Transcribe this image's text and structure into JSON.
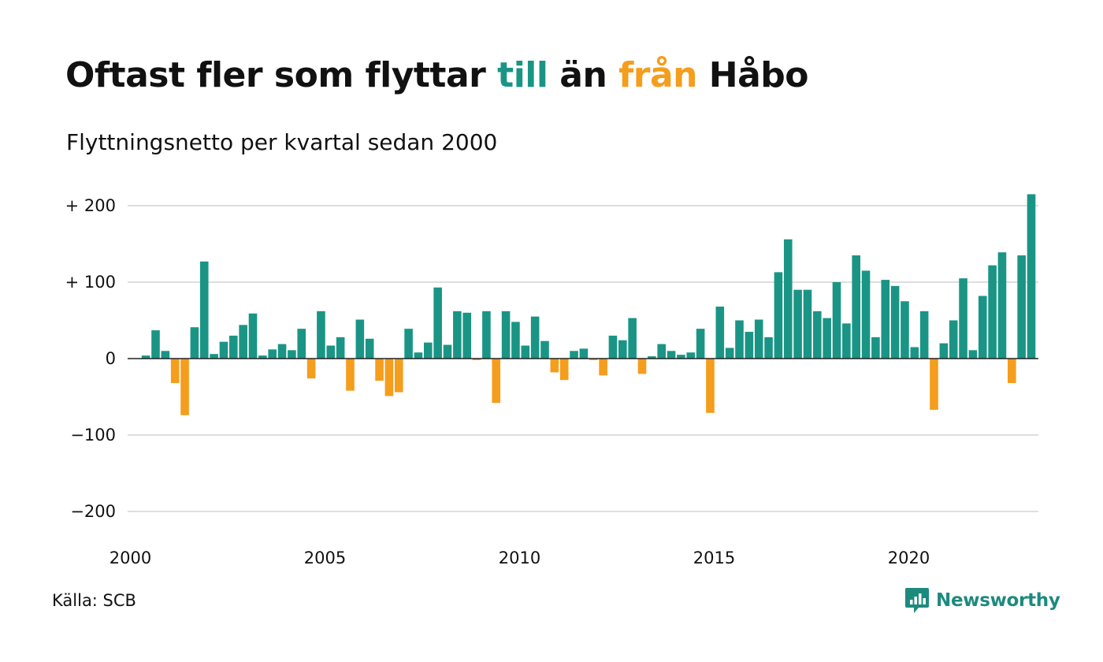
{
  "title": {
    "part1": "Oftast fler som flyttar ",
    "till": "till",
    "part2": " än ",
    "fran": "från",
    "part3": " Håbo"
  },
  "subtitle": "Flyttningsnetto per kvartal sedan 2000",
  "source": "Källa: SCB",
  "brand": "Newsworthy",
  "colors": {
    "positive": "#1a9585",
    "negative": "#f59d1c",
    "grid": "#dedede",
    "brand": "#1d8a7e"
  },
  "chart_data": {
    "type": "bar",
    "title": "Oftast fler som flyttar till än från Håbo",
    "subtitle": "Flyttningsnetto per kvartal sedan 2000",
    "x_start": 2000,
    "ylim": [
      -220,
      220
    ],
    "yticks": [
      200,
      100,
      0,
      -100,
      -200
    ],
    "ytick_labels": [
      "+ 200",
      "+ 100",
      "0",
      "−100",
      "−200"
    ],
    "xticks": [
      2000,
      2005,
      2010,
      2015,
      2020
    ],
    "grid": true,
    "values": [
      0,
      4,
      37,
      10,
      -32,
      -74,
      41,
      127,
      6,
      22,
      30,
      44,
      59,
      4,
      12,
      19,
      11,
      39,
      -26,
      62,
      17,
      28,
      -42,
      51,
      26,
      -29,
      -49,
      -44,
      39,
      8,
      21,
      93,
      18,
      62,
      60,
      -2,
      62,
      -58,
      62,
      48,
      17,
      55,
      23,
      -18,
      -28,
      10,
      13,
      -2,
      -22,
      30,
      24,
      53,
      -20,
      3,
      19,
      10,
      5,
      8,
      39,
      -71,
      68,
      14,
      50,
      35,
      51,
      28,
      113,
      156,
      90,
      90,
      62,
      53,
      100,
      46,
      135,
      115,
      28,
      103,
      95,
      75,
      15,
      62,
      -67,
      20,
      50,
      105,
      11,
      82,
      122,
      139,
      -32,
      135,
      215
    ]
  }
}
